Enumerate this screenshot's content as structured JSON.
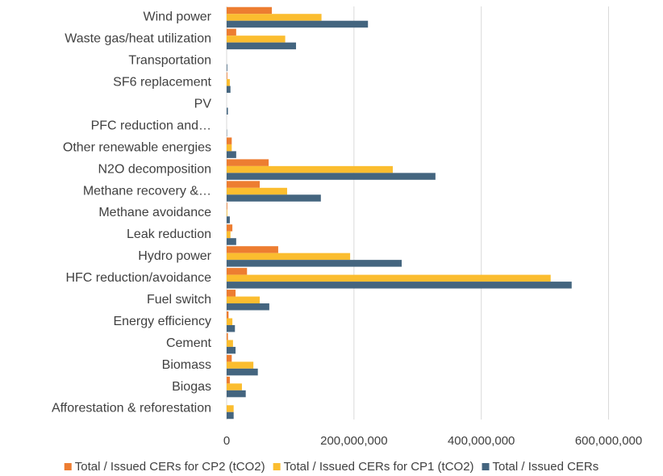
{
  "chart_data": {
    "type": "hbar",
    "categories": [
      "Wind power",
      "Waste gas/heat utilization",
      "Transportation",
      "SF6 replacement",
      "PV",
      "PFC reduction and…",
      "Other renewable energies",
      "N2O decomposition",
      "Methane recovery &…",
      "Methane avoidance",
      "Leak reduction",
      "Hydro power",
      "HFC reduction/avoidance",
      "Fuel switch",
      "Energy efficiency",
      "Cement",
      "Biomass",
      "Biogas",
      "Afforestation & reforestation"
    ],
    "series": [
      {
        "name": "Total / Issued CERs for CP2 (tCO2)",
        "color": "#ed7d31",
        "values": [
          71000000,
          15000000,
          0,
          1000000,
          0,
          0,
          8000000,
          66000000,
          52000000,
          1000000,
          9000000,
          81000000,
          32000000,
          14000000,
          3000000,
          2000000,
          8000000,
          5000000,
          0
        ]
      },
      {
        "name": "Total / Issued CERs for CP1 (tCO2)",
        "color": "#fbbd2f",
        "values": [
          149000000,
          92000000,
          0,
          5000000,
          0,
          0,
          8000000,
          261000000,
          95000000,
          1000000,
          6000000,
          194000000,
          509000000,
          52000000,
          9000000,
          10000000,
          42000000,
          24000000,
          11000000
        ]
      },
      {
        "name": "Total / Issued CERs",
        "color": "#44657f",
        "values": [
          222000000,
          109000000,
          1000000,
          6000000,
          2000000,
          500000,
          15000000,
          328000000,
          148000000,
          5000000,
          15000000,
          275000000,
          542000000,
          67000000,
          13000000,
          14000000,
          49000000,
          30000000,
          11000000
        ]
      }
    ],
    "xlim": [
      0,
      650000000
    ],
    "xticks": [
      0,
      {
        "value": 200000000,
        "label": "200,000,000"
      },
      {
        "value": 400000000,
        "label": "400,000,000"
      },
      {
        "value": 600000000,
        "label": "600,000,000"
      }
    ],
    "grid": true
  }
}
